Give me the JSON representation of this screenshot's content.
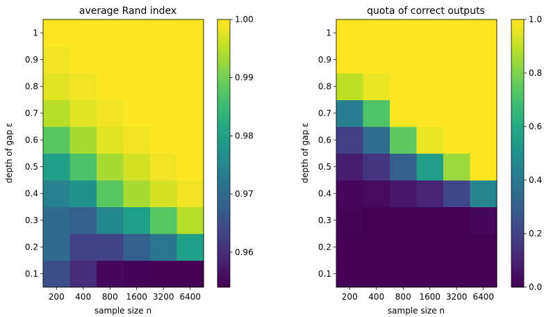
{
  "chart_data": [
    {
      "type": "heatmap",
      "title": "average Rand index",
      "xlabel": "sample size n",
      "ylabel": "depth of gap ε",
      "x_categories": [
        "200",
        "400",
        "800",
        "1600",
        "3200",
        "6400"
      ],
      "y_categories": [
        "0.1",
        "0.2",
        "0.3",
        "0.4",
        "0.5",
        "0.6",
        "0.7",
        "0.8",
        "0.9",
        "1"
      ],
      "colormap": "viridis",
      "vmin": 0.954,
      "vmax": 1.0,
      "colorbar_ticks": [
        "0.96",
        "0.97",
        "0.98",
        "0.99",
        "1.00"
      ],
      "colorbar_tick_values": [
        0.96,
        0.97,
        0.98,
        0.99,
        1.0
      ],
      "values": [
        [
          0.965,
          0.96,
          0.955,
          0.9545,
          0.954,
          0.954
        ],
        [
          0.97,
          0.963,
          0.963,
          0.968,
          0.972,
          0.98
        ],
        [
          0.97,
          0.968,
          0.975,
          0.98,
          0.988,
          0.995
        ],
        [
          0.974,
          0.977,
          0.988,
          0.994,
          0.997,
          0.999
        ],
        [
          0.98,
          0.987,
          0.994,
          0.997,
          0.999,
          1.0
        ],
        [
          0.988,
          0.994,
          0.998,
          0.999,
          1.0,
          1.0
        ],
        [
          0.995,
          0.998,
          0.999,
          1.0,
          1.0,
          1.0
        ],
        [
          0.998,
          0.999,
          1.0,
          1.0,
          1.0,
          1.0
        ],
        [
          0.999,
          1.0,
          1.0,
          1.0,
          1.0,
          1.0
        ],
        [
          1.0,
          1.0,
          1.0,
          1.0,
          1.0,
          1.0
        ]
      ]
    },
    {
      "type": "heatmap",
      "title": "quota of correct outputs",
      "xlabel": "sample size n",
      "ylabel": "depth of gap ε",
      "x_categories": [
        "200",
        "400",
        "800",
        "1600",
        "3200",
        "6400"
      ],
      "y_categories": [
        "0.1",
        "0.2",
        "0.3",
        "0.4",
        "0.5",
        "0.6",
        "0.7",
        "0.8",
        "0.9",
        "1"
      ],
      "colormap": "viridis",
      "vmin": 0.0,
      "vmax": 1.0,
      "colorbar_ticks": [
        "0.0",
        "0.2",
        "0.4",
        "0.6",
        "0.8",
        "1.0"
      ],
      "colorbar_tick_values": [
        0.0,
        0.2,
        0.4,
        0.6,
        0.8,
        1.0
      ],
      "values": [
        [
          0.0,
          0.0,
          0.0,
          0.0,
          0.0,
          0.0
        ],
        [
          0.0,
          0.0,
          0.0,
          0.0,
          0.0,
          0.0
        ],
        [
          0.01,
          0.0,
          0.0,
          0.0,
          0.0,
          0.02
        ],
        [
          0.02,
          0.03,
          0.06,
          0.1,
          0.2,
          0.45
        ],
        [
          0.08,
          0.15,
          0.3,
          0.55,
          0.85,
          1.0
        ],
        [
          0.18,
          0.35,
          0.75,
          0.97,
          1.0,
          1.0
        ],
        [
          0.42,
          0.72,
          1.0,
          1.0,
          1.0,
          1.0
        ],
        [
          0.9,
          0.97,
          1.0,
          1.0,
          1.0,
          1.0
        ],
        [
          1.0,
          1.0,
          1.0,
          1.0,
          1.0,
          1.0
        ],
        [
          1.0,
          1.0,
          1.0,
          1.0,
          1.0,
          1.0
        ]
      ]
    }
  ]
}
